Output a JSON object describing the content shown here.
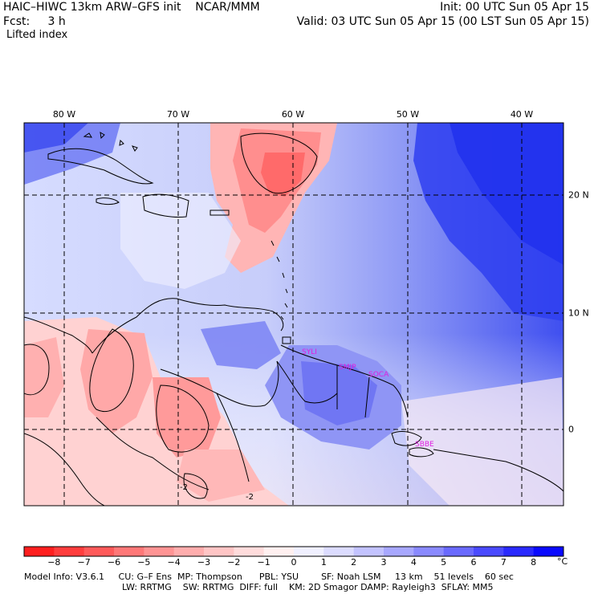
{
  "header": {
    "title": "HAIC–HIWC 13km ARW–GFS init    NCAR/MMM",
    "forecast": "Fcst:     3 h",
    "field": "Lifted index",
    "init": "Init: 00 UTC Sun 05 Apr 15",
    "valid": "Valid: 03 UTC Sun 05 Apr 15 (00 LST Sun 05 Apr 15)"
  },
  "map": {
    "lon_labels": [
      "80 W",
      "70 W",
      "60 W",
      "50 W",
      "40 W"
    ],
    "lat_labels": [
      "20 N",
      "10 N",
      "0"
    ],
    "contour_labels": [
      "-2",
      "-2"
    ],
    "site_labels": [
      "SYLI",
      "SMJP",
      "SOCA",
      "SBBE"
    ]
  },
  "colorbar": {
    "ticks": [
      "−8",
      "−7",
      "−6",
      "−5",
      "−4",
      "−3",
      "−2",
      "−1",
      "0",
      "1",
      "2",
      "3",
      "4",
      "5",
      "6",
      "7",
      "8"
    ],
    "unit": "°C",
    "colors": [
      "#ff1f1f",
      "#ff3d3d",
      "#ff5a5a",
      "#ff7878",
      "#ff9494",
      "#ffadad",
      "#ffc5c5",
      "#ffdcdc",
      "#fff0f0",
      "#f0f0ff",
      "#dcdcff",
      "#c3c3ff",
      "#a8a8ff",
      "#8a8aff",
      "#6a6aff",
      "#4a4aff",
      "#2a2aff",
      "#0a0aff"
    ]
  },
  "footer": {
    "line1": "Model Info: V3.6.1     CU: G–F Ens  MP: Thompson      PBL: YSU        SF: Noah LSM     13 km    51 levels    60 sec",
    "line2": "LW: RRTMG    SW: RRTMG  DIFF: full    KM: 2D Smagor DAMP: Rayleigh3  SFLAY: MM5"
  }
}
